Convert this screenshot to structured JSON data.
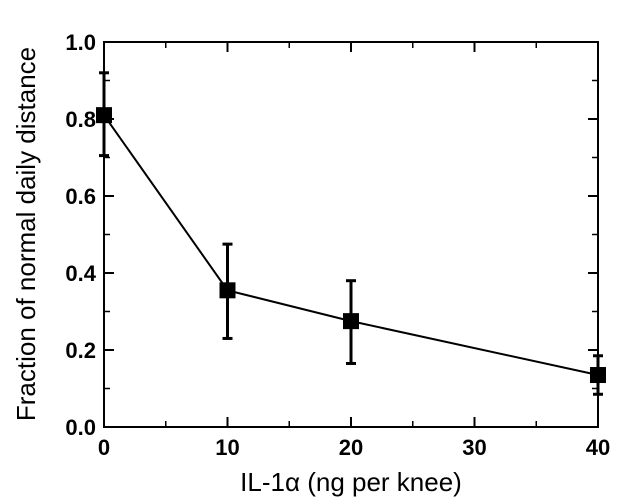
{
  "chart_data": {
    "type": "line",
    "title": "",
    "xlabel": "IL-1α (ng per knee)",
    "ylabel": "Fraction of normal daily distance",
    "xlim": [
      0,
      40
    ],
    "ylim": [
      0.0,
      1.0
    ],
    "x_ticks": [
      0,
      10,
      20,
      30,
      40
    ],
    "x_tick_labels": [
      "0",
      "10",
      "20",
      "30",
      "40"
    ],
    "y_ticks": [
      0.0,
      0.2,
      0.4,
      0.6,
      0.8,
      1.0
    ],
    "y_tick_labels": [
      "0.0",
      "0.2",
      "0.4",
      "0.6",
      "0.8",
      "1.0"
    ],
    "grid": false,
    "legend": "none",
    "series": [
      {
        "x": [
          0,
          10,
          20,
          40
        ],
        "y": [
          0.81,
          0.355,
          0.275,
          0.135
        ],
        "err_upper": [
          0.92,
          0.475,
          0.38,
          0.185
        ],
        "err_lower": [
          0.705,
          0.23,
          0.165,
          0.085
        ],
        "marker": "square",
        "color": "#000000"
      }
    ]
  }
}
